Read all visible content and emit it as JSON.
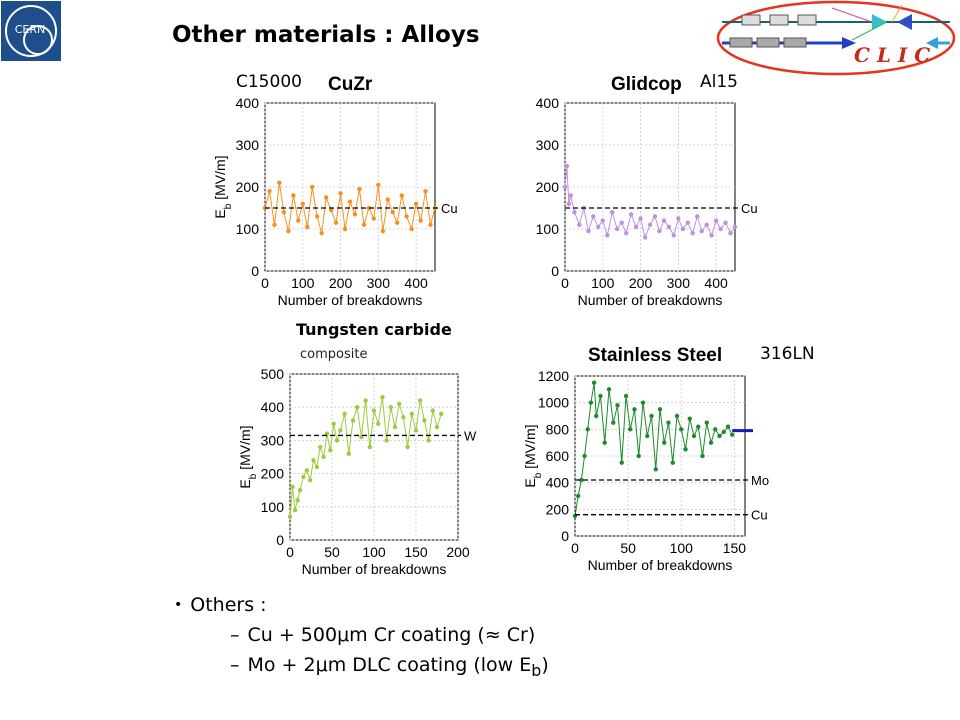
{
  "slide": {
    "title": "Other materials : Alloys",
    "brand": "C L I C",
    "logo_text": "CERN",
    "tags": {
      "cuzr": "C15000",
      "glidcop": "Al15",
      "ss": "316LN"
    },
    "wc": {
      "title": "Tungsten carbide",
      "subtitle": "composite"
    },
    "bullets": {
      "main": "Others :",
      "items": [
        {
          "dash": "–",
          "text": "Cu + 500μm Cr coating (≈ Cr)"
        },
        {
          "dash": "–",
          "text_pre": "Mo + 2μm DLC coating (low E",
          "sub": "b",
          "text_post": ")"
        }
      ]
    }
  },
  "chart_data": [
    {
      "type": "scatter",
      "title": "CuZr",
      "xlabel": "Number of breakdowns",
      "ylabel": "E",
      "ylabel_sub": "b",
      "ylabel_unit": " [MV/m]",
      "xlim": [
        0,
        450
      ],
      "ylim": [
        0,
        400
      ],
      "xticks": [
        0,
        100,
        200,
        300,
        400
      ],
      "yticks": [
        0,
        100,
        200,
        300,
        400
      ],
      "color": "#f5901e",
      "references": [
        {
          "label": "Cu",
          "value": 150
        }
      ],
      "x": [
        0,
        12,
        25,
        38,
        50,
        62,
        75,
        88,
        100,
        112,
        125,
        138,
        150,
        162,
        175,
        188,
        200,
        212,
        225,
        238,
        250,
        262,
        275,
        288,
        300,
        312,
        325,
        338,
        350,
        362,
        375,
        388,
        400,
        412,
        425,
        438,
        450
      ],
      "values": [
        150,
        190,
        110,
        210,
        140,
        95,
        180,
        120,
        160,
        105,
        200,
        130,
        90,
        175,
        145,
        115,
        185,
        100,
        165,
        135,
        195,
        110,
        150,
        125,
        205,
        95,
        170,
        140,
        115,
        180,
        130,
        100,
        160,
        120,
        190,
        110,
        150
      ]
    },
    {
      "type": "scatter",
      "title": "Glidcop",
      "xlabel": "Number of breakdowns",
      "ylabel": "",
      "xlim": [
        0,
        450
      ],
      "ylim": [
        0,
        400
      ],
      "xticks": [
        0,
        100,
        200,
        300,
        400
      ],
      "yticks": [
        0,
        100,
        200,
        300,
        400
      ],
      "color": "#c090e0",
      "references": [
        {
          "label": "Cu",
          "value": 150
        }
      ],
      "x": [
        0,
        5,
        10,
        15,
        25,
        38,
        50,
        62,
        75,
        88,
        100,
        112,
        125,
        138,
        150,
        162,
        175,
        188,
        200,
        212,
        225,
        238,
        250,
        262,
        275,
        288,
        300,
        312,
        325,
        338,
        350,
        362,
        375,
        388,
        400,
        412,
        425,
        438,
        450
      ],
      "values": [
        200,
        250,
        160,
        180,
        140,
        110,
        150,
        95,
        130,
        105,
        120,
        85,
        140,
        100,
        115,
        90,
        135,
        105,
        125,
        80,
        110,
        130,
        95,
        120,
        105,
        85,
        125,
        100,
        115,
        90,
        130,
        95,
        110,
        85,
        120,
        100,
        115,
        90,
        105
      ]
    },
    {
      "type": "scatter",
      "title": "",
      "xlabel": "Number of breakdowns",
      "ylabel": "E",
      "ylabel_sub": "b",
      "ylabel_unit": " [MV/m]",
      "xlim": [
        0,
        200
      ],
      "ylim": [
        0,
        500
      ],
      "xticks": [
        0,
        50,
        100,
        150,
        200
      ],
      "yticks": [
        0,
        100,
        200,
        300,
        400,
        500
      ],
      "color": "#9ccc3c",
      "references": [
        {
          "label": "W",
          "value": 315
        }
      ],
      "x": [
        0,
        3,
        6,
        9,
        12,
        16,
        20,
        24,
        28,
        32,
        36,
        40,
        44,
        48,
        52,
        56,
        60,
        65,
        70,
        75,
        80,
        85,
        90,
        95,
        100,
        105,
        110,
        115,
        120,
        125,
        130,
        135,
        140,
        145,
        150,
        155,
        160,
        165,
        170,
        175,
        180
      ],
      "values": [
        70,
        160,
        90,
        120,
        150,
        190,
        210,
        180,
        240,
        220,
        280,
        250,
        320,
        270,
        350,
        300,
        330,
        380,
        260,
        360,
        400,
        310,
        420,
        280,
        390,
        350,
        430,
        300,
        400,
        340,
        410,
        370,
        280,
        380,
        330,
        420,
        360,
        300,
        390,
        340,
        380
      ]
    },
    {
      "type": "scatter",
      "title": "Stainless Steel",
      "xlabel": "Number of breakdowns",
      "ylabel": "E",
      "ylabel_sub": "b",
      "ylabel_unit": " [MV/m]",
      "xlim": [
        0,
        160
      ],
      "ylim": [
        0,
        1200
      ],
      "xticks": [
        0,
        50,
        100,
        150
      ],
      "yticks": [
        0,
        200,
        400,
        600,
        800,
        1000,
        1200
      ],
      "color": "#1e8a2a",
      "references": [
        {
          "label": "Mo",
          "value": 420
        },
        {
          "label": "Cu",
          "value": 160
        }
      ],
      "marker_line": {
        "value": 790,
        "color": "#1a1ab0"
      },
      "x": [
        0,
        3,
        6,
        9,
        12,
        15,
        18,
        20,
        24,
        28,
        32,
        36,
        40,
        44,
        48,
        52,
        56,
        60,
        64,
        68,
        72,
        76,
        80,
        84,
        88,
        92,
        96,
        100,
        104,
        108,
        112,
        116,
        120,
        124,
        128,
        132,
        136,
        140,
        144,
        148
      ],
      "values": [
        150,
        300,
        420,
        600,
        800,
        1000,
        1150,
        900,
        1050,
        700,
        1100,
        850,
        980,
        550,
        1050,
        800,
        950,
        600,
        1000,
        750,
        900,
        500,
        950,
        700,
        850,
        550,
        900,
        800,
        650,
        880,
        750,
        820,
        600,
        850,
        700,
        800,
        750,
        780,
        820,
        760
      ]
    }
  ]
}
